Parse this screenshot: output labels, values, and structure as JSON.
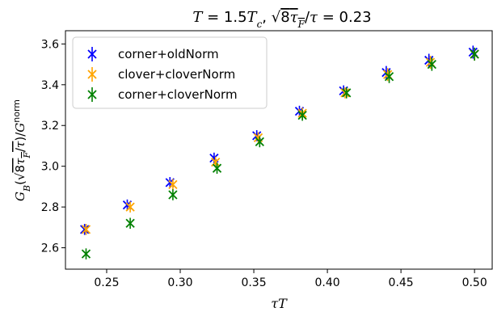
{
  "chart_data": {
    "type": "scatter",
    "title": "T = 1.5T_c, √8τ_F/τ = 0.23",
    "xlabel": "τT",
    "ylabel": "G_B(√8τ_F/τ)/G^norm",
    "xlim": [
      0.222,
      0.512
    ],
    "ylim": [
      2.495,
      3.665
    ],
    "xticks": [
      0.25,
      0.3,
      0.35,
      0.4,
      0.45,
      0.5
    ],
    "xtick_labels": [
      "0.25",
      "0.30",
      "0.35",
      "0.40",
      "0.45",
      "0.50"
    ],
    "yticks": [
      2.6,
      2.8,
      3.0,
      3.2,
      3.4,
      3.6
    ],
    "ytick_labels": [
      "2.6",
      "2.8",
      "3.0",
      "3.2",
      "3.4",
      "3.6"
    ],
    "grid": false,
    "legend_position": "top-left",
    "series": [
      {
        "name": "corner+oldNorm",
        "color": "#0000ff",
        "marker": "x-errorbar",
        "x": [
          0.235,
          0.264,
          0.293,
          0.323,
          0.352,
          0.381,
          0.411,
          0.44,
          0.469,
          0.499
        ],
        "y": [
          2.69,
          2.81,
          2.92,
          3.04,
          3.15,
          3.27,
          3.37,
          3.46,
          3.52,
          3.56
        ],
        "err": [
          0.015,
          0.015,
          0.015,
          0.015,
          0.015,
          0.015,
          0.015,
          0.02,
          0.02,
          0.02
        ]
      },
      {
        "name": "clover+cloverNorm",
        "color": "#ffa500",
        "marker": "x-errorbar",
        "x": [
          0.236,
          0.266,
          0.295,
          0.324,
          0.353,
          0.383,
          0.412,
          0.441,
          0.47,
          0.5
        ],
        "y": [
          2.69,
          2.8,
          2.91,
          3.02,
          3.14,
          3.26,
          3.36,
          3.45,
          3.51,
          3.55
        ],
        "err": [
          0.015,
          0.015,
          0.015,
          0.015,
          0.015,
          0.015,
          0.015,
          0.02,
          0.02,
          0.02
        ]
      },
      {
        "name": "corner+cloverNorm",
        "color": "#008000",
        "marker": "x-errorbar",
        "x": [
          0.236,
          0.266,
          0.295,
          0.325,
          0.354,
          0.383,
          0.413,
          0.442,
          0.471,
          0.5
        ],
        "y": [
          2.57,
          2.72,
          2.86,
          2.99,
          3.12,
          3.25,
          3.36,
          3.44,
          3.5,
          3.55
        ],
        "err": [
          0.015,
          0.015,
          0.015,
          0.015,
          0.015,
          0.015,
          0.015,
          0.02,
          0.02,
          0.02
        ]
      }
    ]
  }
}
